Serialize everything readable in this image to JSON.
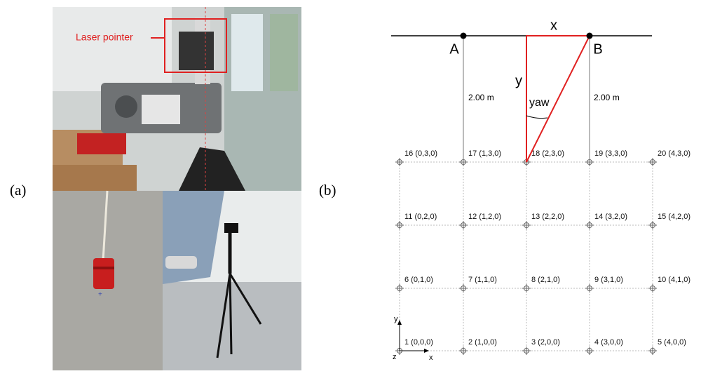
{
  "panel_a": {
    "label": "(a)",
    "annotation": "Laser pointer"
  },
  "panel_b": {
    "label": "(b)",
    "segment_label": "x",
    "point_a": "A",
    "point_b": "B",
    "height_label": "y",
    "angle_label": "yaw",
    "distance_left": "2.00 m",
    "distance_right": "2.00 m",
    "axes": {
      "y": "y",
      "z": "z",
      "x": "x"
    },
    "nodes": [
      "1 (0,0,0)",
      "2 (1,0,0)",
      "3 (2,0,0)",
      "4 (3,0,0)",
      "5 (4,0,0)",
      "6 (0,1,0)",
      "7 (1,1,0)",
      "8 (2,1,0)",
      "9 (3,1,0)",
      "10 (4,1,0)",
      "11 (0,2,0)",
      "12 (1,2,0)",
      "13 (2,2,0)",
      "14 (3,2,0)",
      "15 (4,2,0)",
      "16 (0,3,0)",
      "17 (1,3,0)",
      "18 (2,3,0)",
      "19 (3,3,0)",
      "20 (4,3,0)"
    ]
  }
}
